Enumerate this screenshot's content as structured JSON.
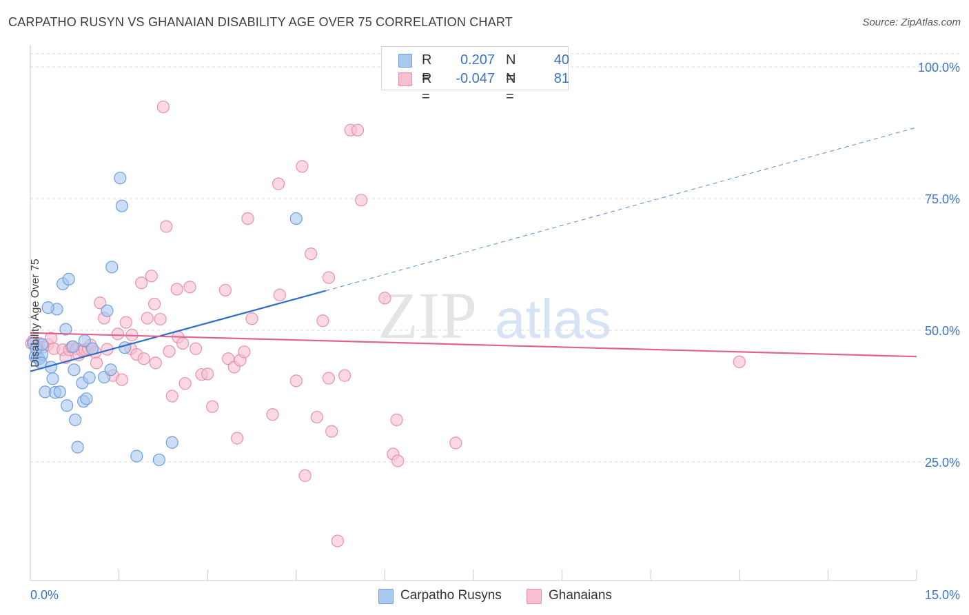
{
  "title": "CARPATHO RUSYN VS GHANAIAN DISABILITY AGE OVER 75 CORRELATION CHART",
  "source": "Source: ZipAtlas.com",
  "watermark": {
    "zip": "ZIP",
    "atlas": "atlas"
  },
  "legend": {
    "series1": {
      "r_label": "R =",
      "r_value": "0.207",
      "n_label": "N =",
      "n_value": "40"
    },
    "series2": {
      "r_label": "R =",
      "r_value": "-0.047",
      "n_label": "N =",
      "n_value": "81"
    }
  },
  "bottom_legend": {
    "series1": "Carpatho Rusyns",
    "series2": "Ghanaians"
  },
  "colors": {
    "blue_fill": "#a9c8f0",
    "blue_stroke": "#6d9ee0",
    "blue_line": "#2f6fc8",
    "pink_fill": "#f7bfd0",
    "pink_stroke": "#ea8fab",
    "pink_line": "#e0628f",
    "tick_text": "#3b74c4",
    "grid": "#d9d9d9"
  },
  "chart_data": {
    "type": "scatter",
    "title": "CARPATHO RUSYN VS GHANAIAN DISABILITY AGE OVER 75 CORRELATION CHART",
    "xlabel": "",
    "ylabel": "Disability Age Over 75",
    "xlim": [
      0,
      15
    ],
    "ylim": [
      0,
      105
    ],
    "x_tick_labels": [
      {
        "value": 0,
        "label": "0.0%"
      },
      {
        "value": 15,
        "label": "15.0%"
      }
    ],
    "y_tick_labels": [
      {
        "value": 25,
        "label": "25.0%"
      },
      {
        "value": 50,
        "label": "50.0%"
      },
      {
        "value": 75,
        "label": "75.0%"
      },
      {
        "value": 100,
        "label": "100.0%"
      }
    ],
    "x_minor_ticks": [
      1.5,
      3.0,
      4.5,
      6.0,
      7.5,
      9.0,
      10.5,
      12.0,
      13.5,
      15.0
    ],
    "series": [
      {
        "name": "Carpatho Rusyns",
        "r": 0.207,
        "n": 40,
        "trend": {
          "x": [
            0,
            5.0
          ],
          "y": [
            42.2,
            57.5
          ]
        },
        "trend_extension": {
          "x": [
            5.0,
            15.0
          ],
          "y": [
            57.5,
            88.5
          ]
        },
        "points": [
          [
            0.05,
            47.5
          ],
          [
            0.08,
            45.0
          ],
          [
            0.12,
            44.8
          ],
          [
            0.15,
            44.6
          ],
          [
            0.2,
            45.4
          ],
          [
            0.18,
            43.8
          ],
          [
            0.25,
            38.3
          ],
          [
            0.35,
            43.0
          ],
          [
            0.42,
            38.2
          ],
          [
            0.5,
            38.3
          ],
          [
            0.38,
            40.8
          ],
          [
            0.45,
            54.0
          ],
          [
            0.55,
            58.8
          ],
          [
            0.6,
            50.2
          ],
          [
            0.65,
            59.7
          ],
          [
            0.62,
            35.7
          ],
          [
            0.72,
            46.9
          ],
          [
            0.74,
            42.5
          ],
          [
            0.76,
            33.0
          ],
          [
            0.8,
            27.8
          ],
          [
            0.88,
            40.0
          ],
          [
            0.9,
            36.5
          ],
          [
            0.92,
            48.0
          ],
          [
            0.95,
            37.0
          ],
          [
            1.0,
            41.0
          ],
          [
            1.05,
            46.5
          ],
          [
            1.25,
            41.1
          ],
          [
            1.3,
            53.7
          ],
          [
            1.36,
            42.5
          ],
          [
            1.38,
            62.0
          ],
          [
            1.52,
            78.9
          ],
          [
            1.55,
            73.6
          ],
          [
            1.6,
            46.7
          ],
          [
            1.8,
            26.1
          ],
          [
            2.18,
            25.4
          ],
          [
            2.4,
            28.7
          ],
          [
            0.3,
            54.3
          ],
          [
            0.1,
            46.5
          ],
          [
            0.2,
            47.3
          ],
          [
            4.5,
            71.2
          ]
        ]
      },
      {
        "name": "Ghanaians",
        "r": -0.047,
        "n": 81,
        "trend": {
          "x": [
            0,
            15.0
          ],
          "y": [
            49.5,
            45.0
          ]
        },
        "points": [
          [
            0.02,
            47.5
          ],
          [
            0.1,
            47.0
          ],
          [
            0.15,
            47.5
          ],
          [
            0.22,
            46.8
          ],
          [
            0.3,
            47.3
          ],
          [
            0.35,
            48.5
          ],
          [
            0.4,
            46.5
          ],
          [
            0.55,
            46.3
          ],
          [
            0.6,
            44.8
          ],
          [
            0.66,
            46.3
          ],
          [
            0.7,
            46.8
          ],
          [
            0.78,
            46.5
          ],
          [
            0.82,
            45.3
          ],
          [
            0.88,
            46.1
          ],
          [
            0.92,
            46.3
          ],
          [
            0.98,
            46.5
          ],
          [
            1.02,
            47.2
          ],
          [
            1.1,
            45.8
          ],
          [
            1.12,
            43.8
          ],
          [
            1.18,
            55.2
          ],
          [
            1.25,
            52.3
          ],
          [
            1.3,
            46.4
          ],
          [
            1.4,
            41.4
          ],
          [
            1.48,
            49.3
          ],
          [
            1.55,
            40.6
          ],
          [
            1.62,
            51.5
          ],
          [
            1.7,
            46.5
          ],
          [
            1.72,
            49.1
          ],
          [
            1.8,
            45.4
          ],
          [
            1.88,
            59.0
          ],
          [
            1.92,
            44.6
          ],
          [
            1.98,
            52.3
          ],
          [
            2.05,
            60.3
          ],
          [
            2.1,
            55.0
          ],
          [
            2.12,
            43.8
          ],
          [
            2.2,
            52.1
          ],
          [
            2.25,
            92.4
          ],
          [
            2.3,
            69.7
          ],
          [
            2.35,
            46.0
          ],
          [
            2.4,
            37.5
          ],
          [
            2.5,
            48.7
          ],
          [
            2.48,
            57.8
          ],
          [
            2.58,
            47.5
          ],
          [
            2.62,
            39.9
          ],
          [
            2.7,
            58.2
          ],
          [
            2.8,
            46.5
          ],
          [
            2.9,
            41.6
          ],
          [
            3.0,
            41.7
          ],
          [
            3.08,
            35.5
          ],
          [
            3.3,
            57.6
          ],
          [
            3.35,
            44.6
          ],
          [
            3.45,
            43.0
          ],
          [
            3.5,
            29.5
          ],
          [
            3.55,
            44.3
          ],
          [
            3.62,
            45.9
          ],
          [
            3.68,
            71.2
          ],
          [
            3.75,
            52.2
          ],
          [
            4.1,
            34.0
          ],
          [
            4.2,
            77.8
          ],
          [
            4.22,
            56.7
          ],
          [
            4.5,
            40.4
          ],
          [
            4.6,
            81.1
          ],
          [
            4.65,
            22.4
          ],
          [
            4.75,
            64.5
          ],
          [
            4.85,
            33.5
          ],
          [
            4.95,
            51.8
          ],
          [
            5.05,
            60.0
          ],
          [
            5.05,
            40.9
          ],
          [
            5.1,
            30.8
          ],
          [
            5.2,
            10.0
          ],
          [
            5.32,
            41.4
          ],
          [
            5.42,
            88.0
          ],
          [
            5.54,
            88.0
          ],
          [
            5.6,
            74.7
          ],
          [
            6.0,
            56.1
          ],
          [
            6.14,
            26.5
          ],
          [
            6.2,
            33.0
          ],
          [
            6.22,
            25.2
          ],
          [
            7.2,
            28.6
          ],
          [
            12.0,
            44.0
          ],
          [
            0.05,
            48.0
          ]
        ]
      }
    ]
  }
}
